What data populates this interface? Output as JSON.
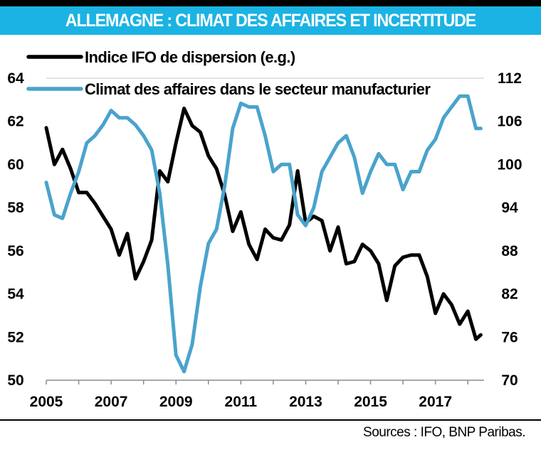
{
  "title": "ALLEMAGNE  : CLIMAT DES AFFAIRES ET INCERTITUDE",
  "source": "Sources : IFO, BNP Paribas.",
  "colors": {
    "title_bg": "#1bb3e3",
    "series_ifo": "#000000",
    "series_climat": "#4aa3cc"
  },
  "chart_data": {
    "type": "line",
    "title": "ALLEMAGNE  : CLIMAT DES AFFAIRES ET INCERTITUDE",
    "xlim": [
      2005,
      2018.5
    ],
    "x_ticks": [
      "2005",
      "2007",
      "2009",
      "2011",
      "2013",
      "2015",
      "2017"
    ],
    "ylim_left": [
      50,
      64
    ],
    "yticks_left": [
      "50",
      "52",
      "54",
      "56",
      "58",
      "60",
      "62",
      "64"
    ],
    "ylim_right": [
      70,
      112
    ],
    "yticks_right": [
      "70",
      "76",
      "82",
      "88",
      "94",
      "100",
      "106",
      "112"
    ],
    "legend_position": "top-left",
    "x": [
      2005.0,
      2005.25,
      2005.5,
      2005.75,
      2006.0,
      2006.25,
      2006.5,
      2006.75,
      2007.0,
      2007.25,
      2007.5,
      2007.75,
      2008.0,
      2008.25,
      2008.5,
      2008.75,
      2009.0,
      2009.25,
      2009.5,
      2009.75,
      2010.0,
      2010.25,
      2010.5,
      2010.75,
      2011.0,
      2011.25,
      2011.5,
      2011.75,
      2012.0,
      2012.25,
      2012.5,
      2012.75,
      2013.0,
      2013.25,
      2013.5,
      2013.75,
      2014.0,
      2014.25,
      2014.5,
      2014.75,
      2015.0,
      2015.25,
      2015.5,
      2015.75,
      2016.0,
      2016.25,
      2016.5,
      2016.75,
      2017.0,
      2017.25,
      2017.5,
      2017.75,
      2018.0,
      2018.25,
      2018.4
    ],
    "series": [
      {
        "name": "Indice IFO de dispersion (e.g.)",
        "axis": "left",
        "color": "#000000",
        "values": [
          61.7,
          60.0,
          60.7,
          59.8,
          58.7,
          58.7,
          58.2,
          57.6,
          57.0,
          55.8,
          56.8,
          54.7,
          55.5,
          56.5,
          59.7,
          59.2,
          61.0,
          62.6,
          61.8,
          61.5,
          60.4,
          59.8,
          58.6,
          56.9,
          57.8,
          56.3,
          55.6,
          57.0,
          56.6,
          56.5,
          57.2,
          59.7,
          57.3,
          57.6,
          57.4,
          56.0,
          57.1,
          55.4,
          55.5,
          56.3,
          56.0,
          55.4,
          53.7,
          55.3,
          55.7,
          55.8,
          55.8,
          54.8,
          53.1,
          54.0,
          53.5,
          52.6,
          53.2,
          51.9,
          52.1
        ]
      },
      {
        "name": "Climat des affaires dans le secteur manufacturier",
        "axis": "right",
        "color": "#4aa3cc",
        "values": [
          97.5,
          93,
          92.5,
          96,
          99,
          103,
          104,
          105.5,
          107.5,
          106.5,
          106.5,
          105.5,
          104,
          102,
          96,
          86,
          73.5,
          71.2,
          75,
          83,
          89,
          91,
          97,
          105,
          108.5,
          108,
          108,
          104,
          99,
          100,
          100,
          93,
          91.5,
          94,
          99,
          101,
          103,
          104,
          101,
          96,
          99,
          101.5,
          100,
          100,
          96.5,
          99,
          99,
          102,
          103.5,
          106.5,
          108,
          109.5,
          109.5,
          105,
          105
        ]
      }
    ]
  }
}
